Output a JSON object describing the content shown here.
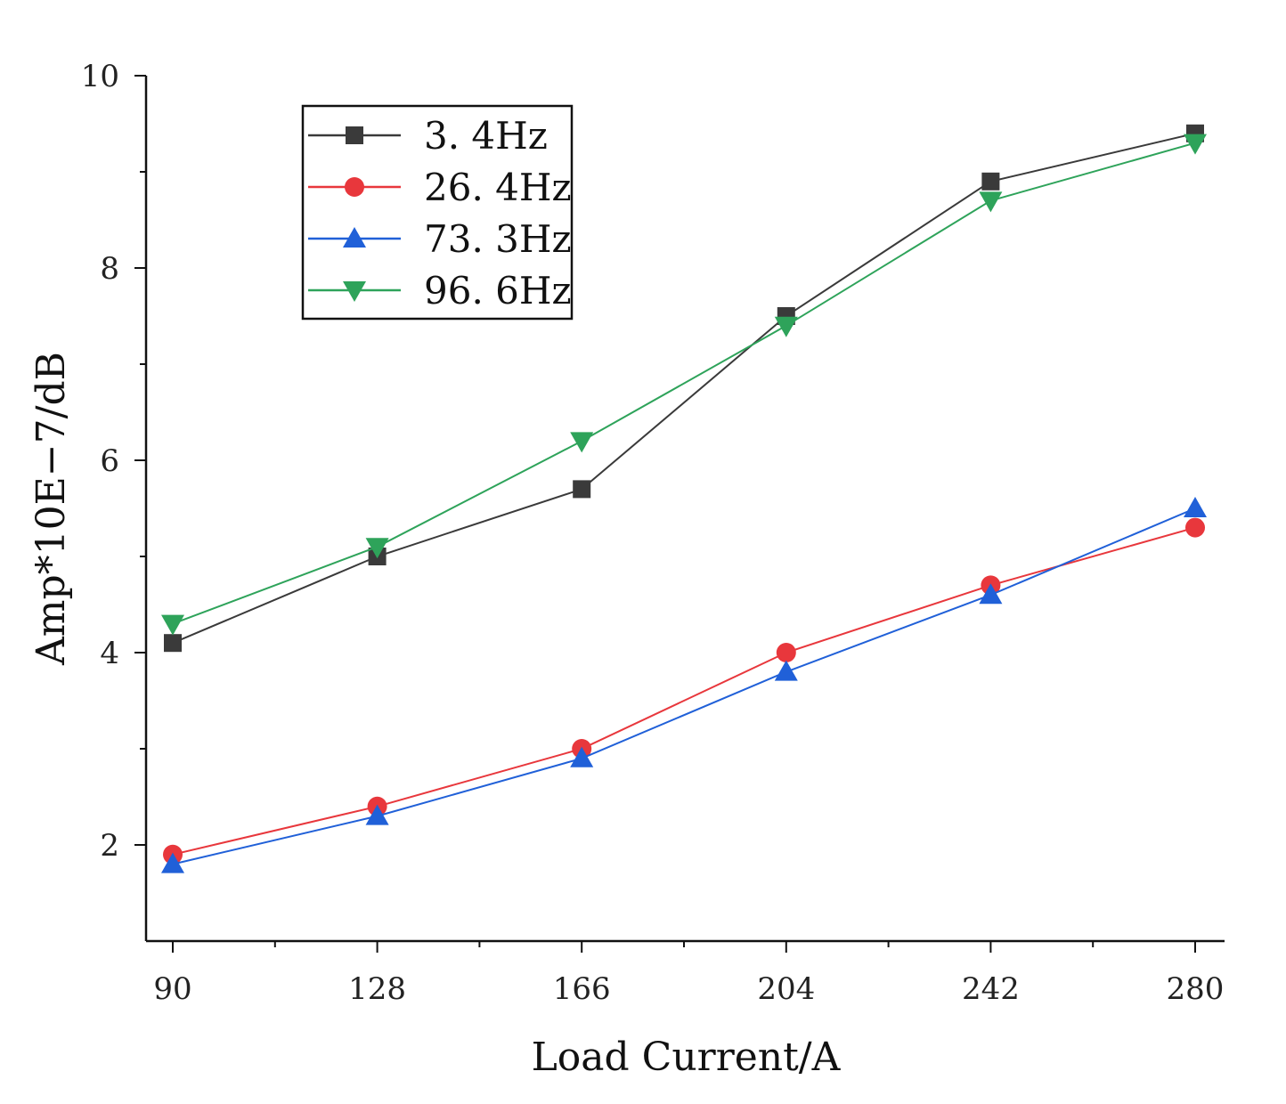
{
  "chart_data": {
    "type": "line",
    "title": "",
    "xlabel": "Load Current/A",
    "ylabel": "Amp*10E−7/dB",
    "x": [
      90,
      128,
      166,
      204,
      242,
      280
    ],
    "xticks": [
      "90",
      "128",
      "166",
      "204",
      "242",
      "280"
    ],
    "yticks": [
      "2",
      "4",
      "6",
      "8",
      "10"
    ],
    "ylim": [
      1,
      10
    ],
    "grid": false,
    "legend_position": "top-left",
    "series": [
      {
        "name": "3. 4Hz",
        "color": "#3a3a3a",
        "marker": "square",
        "values": [
          4.1,
          5.0,
          5.7,
          7.5,
          8.9,
          9.4
        ]
      },
      {
        "name": "26. 4Hz",
        "color": "#e8373c",
        "marker": "circle",
        "values": [
          1.9,
          2.4,
          3.0,
          4.0,
          4.7,
          5.3
        ]
      },
      {
        "name": "73. 3Hz",
        "color": "#2060d8",
        "marker": "triangle-up",
        "values": [
          1.8,
          2.3,
          2.9,
          3.8,
          4.6,
          5.5
        ]
      },
      {
        "name": "96. 6Hz",
        "color": "#2ea35a",
        "marker": "triangle-down",
        "values": [
          4.3,
          5.1,
          6.2,
          7.4,
          8.7,
          9.3
        ]
      }
    ]
  }
}
